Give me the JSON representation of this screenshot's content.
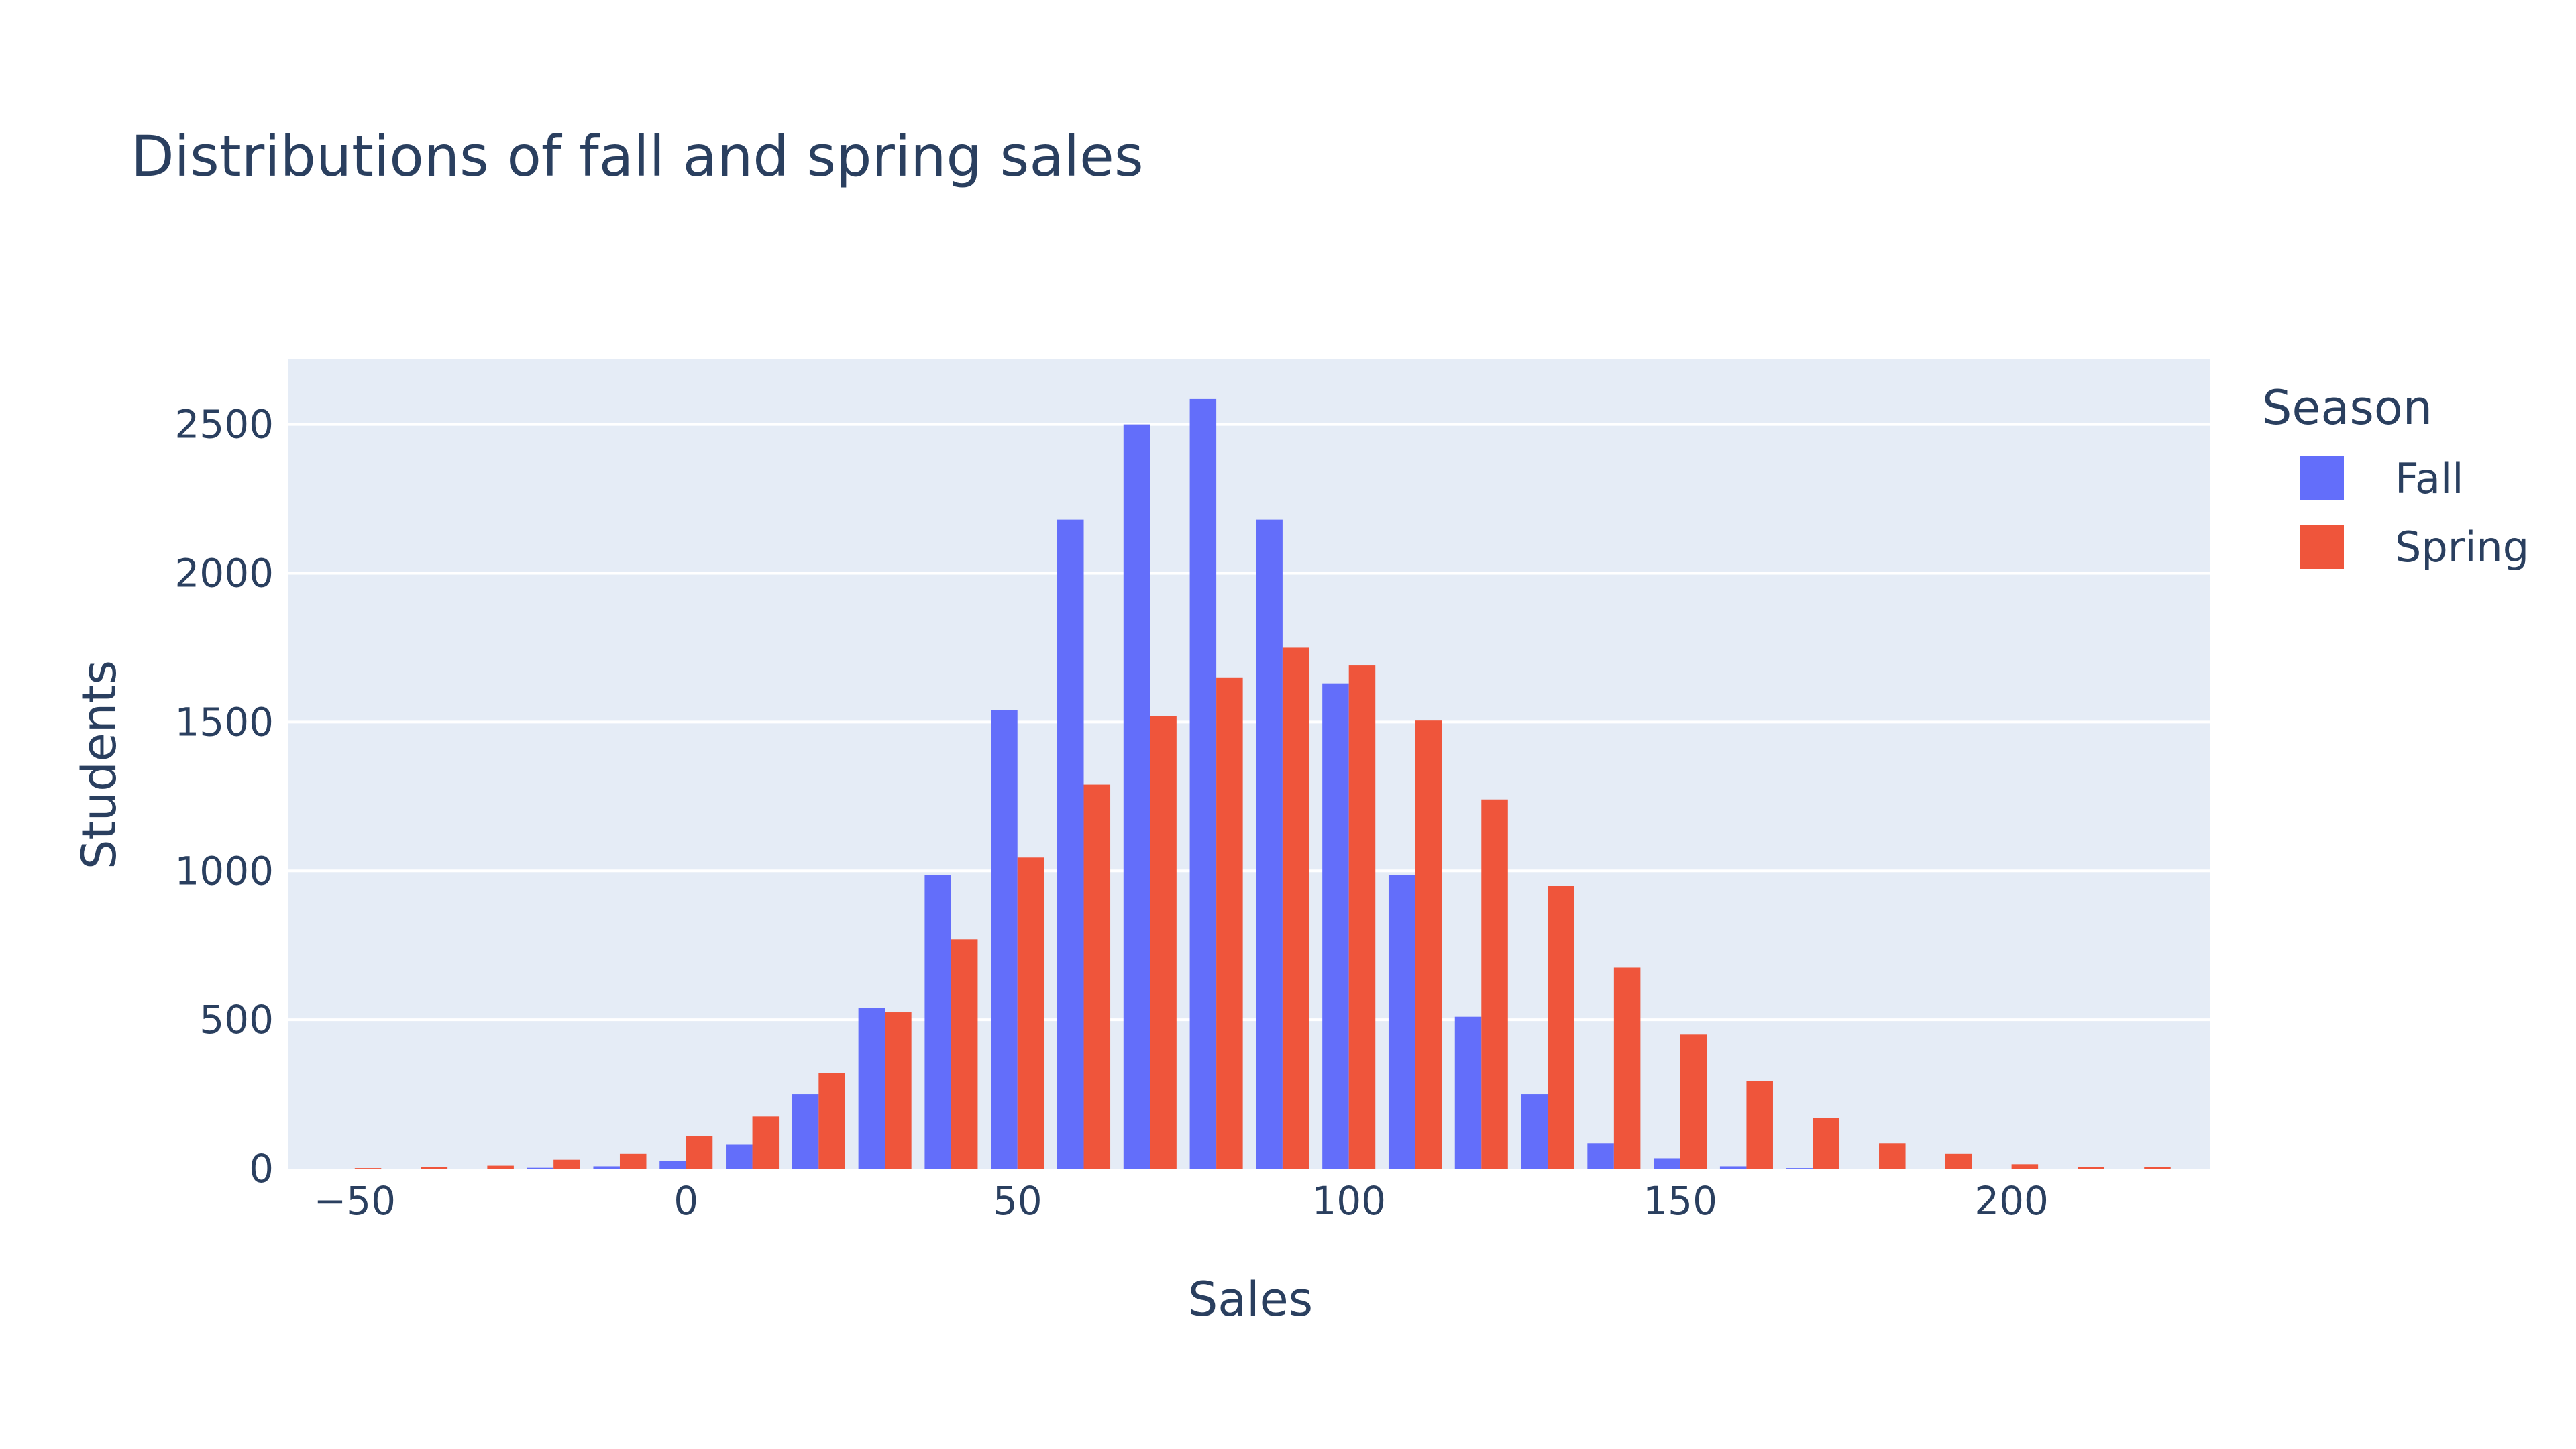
{
  "colors": {
    "background": "#ffffff",
    "plot_background": "#e5ecf6",
    "grid": "#ffffff",
    "text": "#2a3f5f"
  },
  "chart_data": {
    "type": "bar",
    "title": "Distributions of fall and spring sales",
    "xlabel": "Sales",
    "ylabel": "Students",
    "xlim": [
      -60,
      230
    ],
    "ylim": [
      0,
      2720
    ],
    "x_ticks": [
      -50,
      0,
      50,
      100,
      150,
      200
    ],
    "x_tick_labels": [
      "−50",
      "0",
      "50",
      "100",
      "150",
      "200"
    ],
    "y_ticks": [
      0,
      500,
      1000,
      1500,
      2000,
      2500
    ],
    "y_tick_labels": [
      "0",
      "500",
      "1000",
      "1500",
      "2000",
      "2500"
    ],
    "grid": true,
    "bin_width": 10,
    "categories": [
      -50,
      -40,
      -30,
      -20,
      -10,
      0,
      10,
      20,
      30,
      40,
      50,
      60,
      70,
      80,
      90,
      100,
      110,
      120,
      130,
      140,
      150,
      160,
      170,
      180,
      190,
      200,
      210,
      220
    ],
    "legend": {
      "title": "Season",
      "position": "right"
    },
    "series": [
      {
        "name": "Fall",
        "color": "#636efa",
        "values": [
          0,
          0,
          0,
          3,
          8,
          25,
          80,
          250,
          540,
          985,
          1540,
          2180,
          2500,
          2585,
          2180,
          1630,
          985,
          510,
          250,
          85,
          35,
          8,
          2,
          0,
          0,
          0,
          0,
          0
        ]
      },
      {
        "name": "Spring",
        "color": "#ef553b",
        "values": [
          2,
          5,
          10,
          30,
          50,
          110,
          175,
          320,
          525,
          770,
          1045,
          1290,
          1520,
          1650,
          1750,
          1690,
          1505,
          1240,
          950,
          675,
          450,
          295,
          170,
          85,
          50,
          15,
          5,
          5
        ]
      }
    ]
  }
}
